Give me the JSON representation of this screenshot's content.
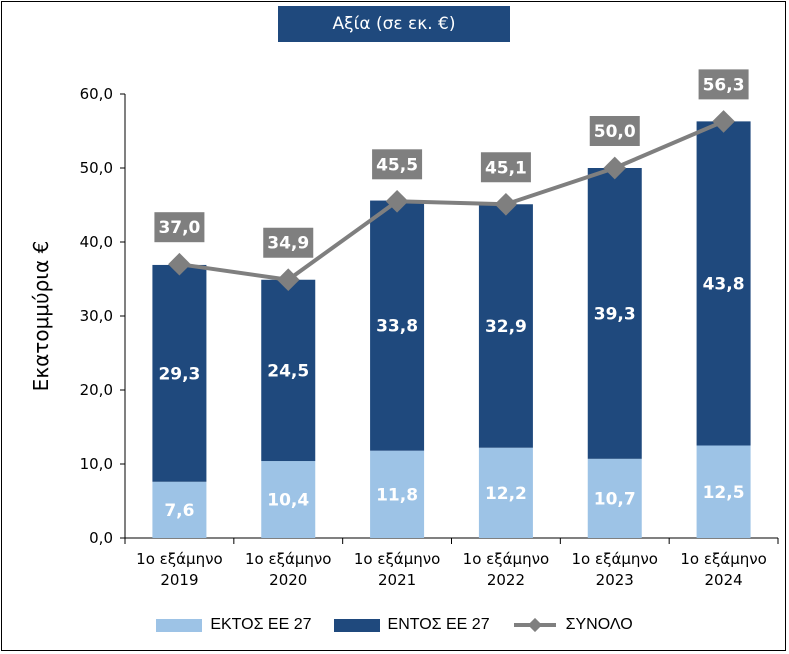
{
  "chart_data": {
    "type": "bar",
    "title": "Αξία (σε εκ. €)",
    "ylabel": "Εκατομμύρια €",
    "xlabel": "",
    "ylim": [
      0,
      60
    ],
    "yticks": [
      "0,0",
      "10,0",
      "20,0",
      "30,0",
      "40,0",
      "50,0",
      "60,0"
    ],
    "categories": [
      [
        "1ο εξάμηνο",
        "2019"
      ],
      [
        "1ο εξάμηνο",
        "2020"
      ],
      [
        "1ο εξάμηνο",
        "2021"
      ],
      [
        "1ο εξάμηνο",
        "2022"
      ],
      [
        "1ο εξάμηνο",
        "2023"
      ],
      [
        "1ο εξάμηνο",
        "2024"
      ]
    ],
    "series": [
      {
        "name": "ΕΚΤΟΣ ΕΕ 27",
        "values": [
          7.6,
          10.4,
          11.8,
          12.2,
          10.7,
          12.5
        ],
        "labels": [
          "7,6",
          "10,4",
          "11,8",
          "12,2",
          "10,7",
          "12,5"
        ],
        "color": "#9dc3e6"
      },
      {
        "name": "ΕΝΤΟΣ ΕΕ 27",
        "values": [
          29.3,
          24.5,
          33.8,
          32.9,
          39.3,
          43.8
        ],
        "labels": [
          "29,3",
          "24,5",
          "33,8",
          "32,9",
          "39,3",
          "43,8"
        ],
        "color": "#1f497d"
      },
      {
        "name": "ΣΥΝΟΛΟ",
        "type": "line",
        "values": [
          37.0,
          34.9,
          45.5,
          45.1,
          50.0,
          56.3
        ],
        "labels": [
          "37,0",
          "34,9",
          "45,5",
          "45,1",
          "50,0",
          "56,3"
        ],
        "color": "#7f7f7f"
      }
    ],
    "legend_position": "bottom"
  }
}
